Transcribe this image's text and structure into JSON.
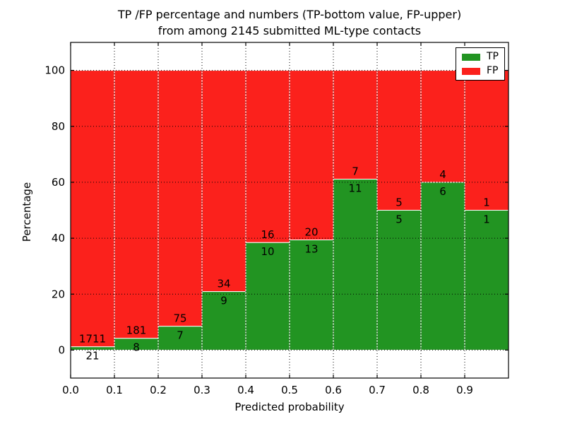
{
  "figure": {
    "title_line1": "TP /FP percentage and numbers (TP-bottom value, FP-upper)",
    "title_line2": "from among 2145 submitted ML-type contacts"
  },
  "chart_data": {
    "type": "bar",
    "stacked": true,
    "normalization": "each bin stacked to 100 percent",
    "title": "TP /FP percentage and numbers (TP-bottom value, FP-upper)\nfrom among 2145 submitted ML-type contacts",
    "xlabel": "Predicted probability",
    "ylabel": "Percentage",
    "total_contacts": 2145,
    "x_bins": [
      0.0,
      0.1,
      0.2,
      0.3,
      0.4,
      0.5,
      0.6,
      0.7,
      0.8,
      0.9
    ],
    "bin_width": 0.1,
    "series": [
      {
        "name": "TP",
        "color": "#229422",
        "counts": [
          21,
          8,
          7,
          9,
          10,
          13,
          11,
          5,
          6,
          1
        ],
        "percent_of_bin": [
          1.21,
          4.23,
          8.54,
          20.93,
          38.46,
          39.39,
          61.11,
          50.0,
          60.0,
          50.0
        ]
      },
      {
        "name": "FP",
        "color": "#fb211c",
        "counts": [
          1711,
          181,
          75,
          34,
          16,
          20,
          7,
          5,
          4,
          1
        ],
        "percent_of_bin": [
          98.79,
          95.77,
          91.46,
          79.07,
          61.54,
          60.61,
          38.89,
          50.0,
          40.0,
          50.0
        ]
      }
    ],
    "xticks": [
      "0.0",
      "0.1",
      "0.2",
      "0.3",
      "0.4",
      "0.5",
      "0.6",
      "0.7",
      "0.8",
      "0.9"
    ],
    "yticks": [
      0,
      20,
      40,
      60,
      80,
      100
    ],
    "xlim": [
      0.0,
      1.0
    ],
    "ylim": [
      -10,
      110
    ],
    "grid": "dotted black, horizontal and vertical",
    "bar_edge_color": "#ffffff",
    "legend": {
      "position": "upper right",
      "entries": [
        {
          "label": "TP",
          "color": "#229422"
        },
        {
          "label": "FP",
          "color": "#fb211c"
        }
      ]
    }
  }
}
